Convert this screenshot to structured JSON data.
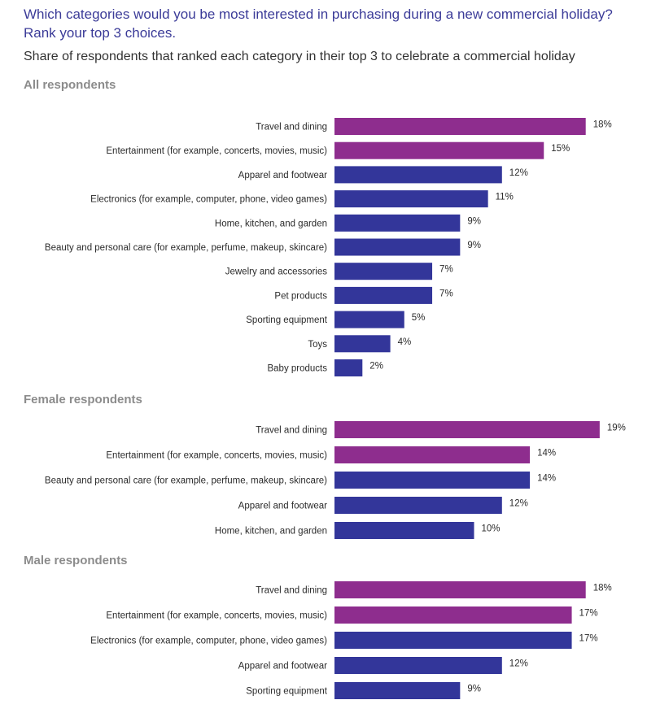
{
  "header": {
    "title": "Which categories would you be most interested in purchasing during a new commercial holiday? Rank your top 3 choices.",
    "subtitle": "Share of respondents that ranked each category in their top 3 to celebrate a commercial holiday"
  },
  "colors": {
    "highlight": "#8e2d8e",
    "standard": "#33369a"
  },
  "chart_data": [
    {
      "type": "bar",
      "orientation": "horizontal",
      "title": "All respondents",
      "unit": "%",
      "xlim": [
        0,
        19
      ],
      "categories": [
        "Travel and dining",
        "Entertainment (for example, concerts, movies, music)",
        "Apparel and footwear",
        "Electronics (for example, computer, phone, video games)",
        "Home, kitchen, and garden",
        "Beauty and personal care (for example, perfume, makeup, skincare)",
        "Jewelry and accessories",
        "Pet products",
        "Sporting equipment",
        "Toys",
        "Baby products"
      ],
      "values": [
        18,
        15,
        12,
        11,
        9,
        9,
        7,
        7,
        5,
        4,
        2
      ],
      "value_labels": [
        "18%",
        "15%",
        "12%",
        "11%",
        "9%",
        "9%",
        "7%",
        "7%",
        "5%",
        "4%",
        "2%"
      ],
      "highlighted": [
        true,
        true,
        false,
        false,
        false,
        false,
        false,
        false,
        false,
        false,
        false
      ]
    },
    {
      "type": "bar",
      "orientation": "horizontal",
      "title": "Female respondents",
      "unit": "%",
      "xlim": [
        0,
        19
      ],
      "categories": [
        "Travel and dining",
        "Entertainment (for example, concerts, movies, music)",
        "Beauty and personal care (for example, perfume, makeup, skincare)",
        "Apparel and footwear",
        "Home, kitchen, and garden"
      ],
      "values": [
        19,
        14,
        14,
        12,
        10
      ],
      "value_labels": [
        "19%",
        "14%",
        "14%",
        "12%",
        "10%"
      ],
      "highlighted": [
        true,
        true,
        false,
        false,
        false
      ]
    },
    {
      "type": "bar",
      "orientation": "horizontal",
      "title": "Male respondents",
      "unit": "%",
      "xlim": [
        0,
        19
      ],
      "categories": [
        "Travel and dining",
        "Entertainment (for example, concerts, movies, music)",
        "Electronics (for example, computer, phone, video games)",
        "Apparel and footwear",
        "Sporting equipment"
      ],
      "values": [
        18,
        17,
        17,
        12,
        9
      ],
      "value_labels": [
        "18%",
        "17%",
        "17%",
        "12%",
        "9%"
      ],
      "highlighted": [
        true,
        true,
        false,
        false,
        false
      ]
    }
  ]
}
